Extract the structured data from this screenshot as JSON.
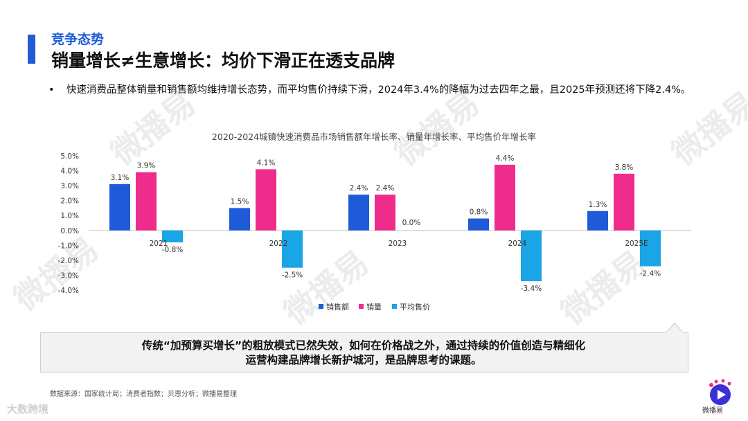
{
  "header": {
    "section_label": "竞争态势",
    "headline": "销量增长≠生意增长：均价下滑正在透支品牌"
  },
  "bullet": {
    "marker": "•",
    "text": "快速消费品整体销量和销售额均维持增长态势，而平均售价持续下滑，2024年3.4%的降幅为过去四年之最，且2025年预测还将下降2.4%。"
  },
  "chart_data": {
    "type": "bar",
    "title": "2020-2024城镇快速消费品市场销售额年增长率、销量年增长率、平均售价年增长率",
    "categories": [
      "2021",
      "2022",
      "2023",
      "2024",
      "2025E"
    ],
    "series": [
      {
        "name": "销售额",
        "color": "#1f5bd8",
        "values": [
          3.1,
          1.5,
          2.4,
          0.8,
          1.3
        ],
        "labels": [
          "3.1%",
          "1.5%",
          "2.4%",
          "0.8%",
          "1.3%"
        ]
      },
      {
        "name": "销量",
        "color": "#ee2c8c",
        "values": [
          3.9,
          4.1,
          2.4,
          4.4,
          3.8
        ],
        "labels": [
          "3.9%",
          "4.1%",
          "2.4%",
          "4.4%",
          "3.8%"
        ]
      },
      {
        "name": "平均售价",
        "color": "#1aa5e6",
        "values": [
          -0.8,
          -2.5,
          0.0,
          -3.4,
          -2.4
        ],
        "labels": [
          "-0.8%",
          "-2.5%",
          "0.0%",
          "-3.4%",
          "-2.4%"
        ]
      }
    ],
    "yticks": [
      "5.0%",
      "4.0%",
      "3.0%",
      "2.0%",
      "1.0%",
      "0.0%",
      "-1.0%",
      "-2.0%",
      "-3.0%",
      "-4.0%"
    ],
    "ylim": [
      -4,
      5
    ],
    "grid": false,
    "legend": "bottom-center"
  },
  "callout": {
    "line1": "传统“加预算买增长”的粗放模式已然失效，如何在价格战之外，通过持续的价值创造与精细化",
    "line2": "运营构建品牌增长新护城河，是品牌思考的课题。"
  },
  "source": "数据来源：国家统计局；消费者指数；贝恩分析；微播易整理",
  "watermark": "微播易",
  "footer_brand": "大数跨境",
  "logo_text": "微播易"
}
